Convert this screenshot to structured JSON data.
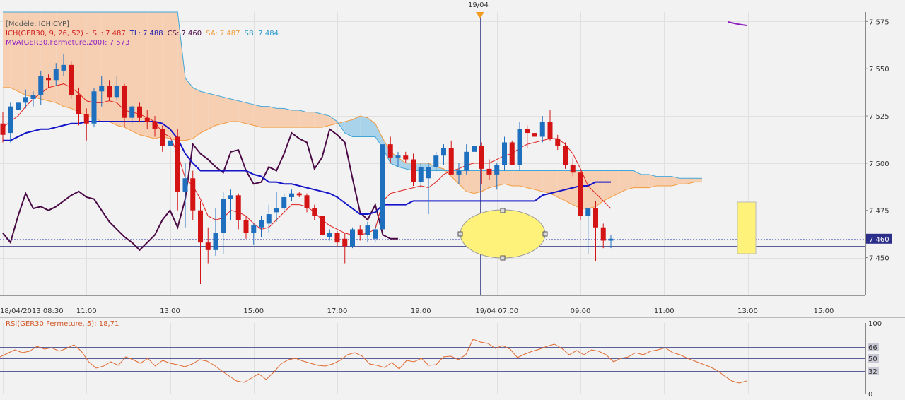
{
  "top_marker": {
    "label": "19/04"
  },
  "legend": {
    "model": "[Modèle: ICHICYP]",
    "ich_prefix": "ICH(GER30, 9, 26, 52) -",
    "sl": "SL: 7 487",
    "tl": "TL: 7 488",
    "cs": "CS: 7 460",
    "sa": "SA: 7 487",
    "sb": "SB: 7 484",
    "mva": "MVA(GER30.Fermeture,200): 7 573"
  },
  "rsi_label": "RSI(GER30.Fermeture, 5): 18,71",
  "colors": {
    "up_candle": "#1f6fbf",
    "down_candle": "#d41414",
    "tenkan": "#e02020",
    "kijun": "#1414c8",
    "chikou": "#4a0a45",
    "cloud_bear": "#f6cfb3",
    "cloud_bull": "#a9d3ea",
    "ssa_line": "#f39a3c",
    "ssb_line": "#41a7d8",
    "mva": "#8e1fbf",
    "rsi": "#e06a30",
    "highlight": "#fff27a",
    "price_tag": "#2c2f8a"
  },
  "chart_data": [
    {
      "type": "candlestick",
      "instrument": "GER30",
      "ylim": [
        7430,
        7580
      ],
      "y_ticks": [
        "7 575",
        "7 550",
        "7 525",
        "7 500",
        "7 475",
        "7 450"
      ],
      "y_tick_values": [
        7575,
        7550,
        7525,
        7500,
        7475,
        7450
      ],
      "x_ticks": [
        "18/04/2013 08:30",
        "11:00",
        "13:00",
        "15:00",
        "17:00",
        "19:00",
        "19/04 07:00",
        "09:00",
        "11:00",
        "13:00",
        "15:00"
      ],
      "last_price": {
        "label": "7 460",
        "value": 7460
      },
      "horizontal_lines": [
        7517,
        7456
      ],
      "dotted_line": 7460,
      "candles_ohlc": [
        [
          7521,
          7527,
          7511,
          7515
        ],
        [
          7516,
          7532,
          7511,
          7530
        ],
        [
          7528,
          7537,
          7524,
          7532
        ],
        [
          7532,
          7539,
          7529,
          7535
        ],
        [
          7534,
          7538,
          7530,
          7536
        ],
        [
          7536,
          7549,
          7531,
          7546
        ],
        [
          7545,
          7547,
          7540,
          7544
        ],
        [
          7544,
          7553,
          7541,
          7550
        ],
        [
          7549,
          7558,
          7546,
          7552
        ],
        [
          7552,
          7554,
          7534,
          7536
        ],
        [
          7536,
          7540,
          7520,
          7526
        ],
        [
          7526,
          7529,
          7512,
          7521
        ],
        [
          7521,
          7540,
          7519,
          7538
        ],
        [
          7538,
          7546,
          7530,
          7541
        ],
        [
          7541,
          7544,
          7533,
          7535
        ],
        [
          7535,
          7546,
          7533,
          7541
        ],
        [
          7541,
          7542,
          7519,
          7524
        ],
        [
          7524,
          7531,
          7521,
          7530
        ],
        [
          7530,
          7532,
          7522,
          7524
        ],
        [
          7524,
          7528,
          7518,
          7522
        ],
        [
          7522,
          7525,
          7514,
          7518
        ],
        [
          7518,
          7520,
          7506,
          7509
        ],
        [
          7509,
          7516,
          7505,
          7512
        ],
        [
          7514,
          7518,
          7475,
          7485
        ],
        [
          7485,
          7500,
          7466,
          7492
        ],
        [
          7492,
          7496,
          7470,
          7475
        ],
        [
          7475,
          7480,
          7436,
          7458
        ],
        [
          7458,
          7466,
          7447,
          7454
        ],
        [
          7454,
          7476,
          7451,
          7463
        ],
        [
          7463,
          7485,
          7452,
          7481
        ],
        [
          7481,
          7486,
          7470,
          7483
        ],
        [
          7483,
          7484,
          7465,
          7470
        ],
        [
          7470,
          7472,
          7460,
          7463
        ],
        [
          7463,
          7468,
          7457,
          7467
        ],
        [
          7466,
          7472,
          7461,
          7470
        ],
        [
          7468,
          7478,
          7463,
          7473
        ],
        [
          7474,
          7485,
          7469,
          7476
        ],
        [
          7476,
          7484,
          7475,
          7482
        ],
        [
          7482,
          7486,
          7480,
          7484
        ],
        [
          7484,
          7485,
          7482,
          7483
        ],
        [
          7483,
          7484,
          7474,
          7476
        ],
        [
          7476,
          7478,
          7470,
          7472
        ],
        [
          7472,
          7474,
          7460,
          7462
        ],
        [
          7461,
          7465,
          7459,
          7463
        ],
        [
          7463,
          7464,
          7456,
          7458
        ],
        [
          7460,
          7463,
          7447,
          7456
        ],
        [
          7456,
          7466,
          7455,
          7465
        ],
        [
          7465,
          7467,
          7459,
          7462
        ],
        [
          7462,
          7469,
          7458,
          7467
        ],
        [
          7460,
          7468,
          7458,
          7465
        ],
        [
          7465,
          7512,
          7462,
          7510
        ],
        [
          7510,
          7514,
          7500,
          7503
        ],
        [
          7503,
          7506,
          7498,
          7504
        ],
        [
          7504,
          7506,
          7500,
          7502
        ],
        [
          7502,
          7505,
          7488,
          7490
        ],
        [
          7490,
          7500,
          7487,
          7498
        ],
        [
          7492,
          7500,
          7473,
          7498
        ],
        [
          7498,
          7506,
          7496,
          7504
        ],
        [
          7504,
          7510,
          7499,
          7508
        ],
        [
          7508,
          7512,
          7496,
          7494
        ],
        [
          7494,
          7500,
          7489,
          7496
        ],
        [
          7496,
          7510,
          7494,
          7506
        ],
        [
          7506,
          7512,
          7502,
          7509
        ],
        [
          7509,
          7511,
          7489,
          7497
        ],
        [
          7497,
          7502,
          7491,
          7494
        ],
        [
          7494,
          7500,
          7486,
          7499
        ],
        [
          7499,
          7514,
          7496,
          7511
        ],
        [
          7511,
          7512,
          7499,
          7499
        ],
        [
          7499,
          7522,
          7496,
          7518
        ],
        [
          7518,
          7520,
          7508,
          7516
        ],
        [
          7516,
          7518,
          7510,
          7514
        ],
        [
          7514,
          7525,
          7511,
          7522
        ],
        [
          7522,
          7528,
          7512,
          7513
        ],
        [
          7513,
          7515,
          7507,
          7509
        ],
        [
          7509,
          7511,
          7497,
          7499
        ],
        [
          7499,
          7503,
          7493,
          7495
        ],
        [
          7495,
          7496,
          7470,
          7472
        ],
        [
          7472,
          7475,
          7452,
          7476
        ],
        [
          7476,
          7480,
          7448,
          7466
        ],
        [
          7466,
          7468,
          7455,
          7459
        ],
        [
          7459,
          7462,
          7455,
          7460
        ]
      ],
      "tenkan": [
        7519,
        7522,
        7525,
        7530,
        7534,
        7537,
        7540,
        7541,
        7542,
        7540,
        7537,
        7533,
        7532,
        7532,
        7533,
        7532,
        7528,
        7527,
        7526,
        7524,
        7522,
        7516,
        7514,
        7505,
        7492,
        7488,
        7481,
        7472,
        7470,
        7471,
        7475,
        7474,
        7472,
        7468,
        7465,
        7466,
        7470,
        7474,
        7478,
        7478,
        7477,
        7474,
        7470,
        7467,
        7465,
        7463,
        7462,
        7462,
        7463,
        7465,
        7480,
        7484,
        7485,
        7486,
        7487,
        7488,
        7487,
        7490,
        7494,
        7496,
        7497,
        7499,
        7500,
        7500,
        7500,
        7502,
        7504,
        7505,
        7508,
        7510,
        7511,
        7512,
        7513,
        7513,
        7510,
        7505,
        7497,
        7488,
        7484,
        7480,
        7476
      ],
      "kijun": [
        7512,
        7512,
        7514,
        7516,
        7517,
        7518,
        7518,
        7519,
        7520,
        7521,
        7521,
        7522,
        7522,
        7522,
        7522,
        7522,
        7522,
        7522,
        7522,
        7522,
        7522,
        7521,
        7518,
        7513,
        7505,
        7500,
        7496,
        7496,
        7496,
        7496,
        7496,
        7496,
        7496,
        7494,
        7493,
        7490,
        7490,
        7489,
        7489,
        7488,
        7487,
        7486,
        7485,
        7484,
        7482,
        7479,
        7476,
        7473,
        7473,
        7474,
        7478,
        7478,
        7478,
        7478,
        7480,
        7480,
        7480,
        7480,
        7480,
        7480,
        7480,
        7480,
        7480,
        7480,
        7480,
        7480,
        7480,
        7480,
        7480,
        7480,
        7480,
        7483,
        7484,
        7485,
        7486,
        7487,
        7488,
        7488,
        7490,
        7490,
        7490
      ],
      "chikou_start_index": 0,
      "chikou": [
        7463,
        7458,
        7472,
        7484,
        7476,
        7477,
        7475,
        7477,
        7480,
        7483,
        7485,
        7482,
        7481,
        7475,
        7469,
        7465,
        7461,
        7458,
        7454,
        7458,
        7462,
        7470,
        7475,
        7466,
        7481,
        7510,
        7505,
        7502,
        7498,
        7495,
        7506,
        7507,
        7496,
        7489,
        7490,
        7498,
        7496,
        7505,
        7516,
        7513,
        7511,
        7497,
        7503,
        7518,
        7515,
        7511,
        7492,
        7474,
        7470,
        7478,
        7462,
        7460,
        7460
      ],
      "senkou_a": [
        7540,
        7540,
        7538,
        7536,
        7535,
        7534,
        7533,
        7532,
        7530,
        7529,
        7527,
        7525,
        7524,
        7522,
        7522,
        7520,
        7519,
        7517,
        7515,
        7514,
        7513,
        7514,
        7513,
        7512,
        7512,
        7513,
        7516,
        7518,
        7520,
        7521,
        7522,
        7522,
        7521,
        7520,
        7519,
        7519,
        7519,
        7519,
        7519,
        7519,
        7519,
        7519,
        7519,
        7520,
        7521,
        7522,
        7523,
        7525,
        7524,
        7521,
        7513,
        7506,
        7503,
        7500,
        7500,
        7500,
        7500,
        7498,
        7497,
        7493,
        7489,
        7485,
        7484,
        7485,
        7487,
        7488,
        7489,
        7488,
        7488,
        7487,
        7486,
        7485,
        7484,
        7482,
        7480,
        7478,
        7476,
        7476,
        7477,
        7480,
        7482,
        7484,
        7486,
        7487,
        7487,
        7487,
        7488,
        7488,
        7488,
        7489,
        7489,
        7490,
        7490
      ],
      "senkou_b": [
        7580,
        7580,
        7580,
        7580,
        7580,
        7580,
        7580,
        7580,
        7580,
        7580,
        7580,
        7580,
        7580,
        7580,
        7580,
        7580,
        7580,
        7580,
        7580,
        7580,
        7580,
        7580,
        7580,
        7580,
        7545,
        7540,
        7538,
        7537,
        7536,
        7535,
        7534,
        7533,
        7532,
        7531,
        7530,
        7530,
        7529,
        7529,
        7528,
        7528,
        7527,
        7527,
        7526,
        7525,
        7522,
        7516,
        7514,
        7514,
        7514,
        7514,
        7508,
        7500,
        7498,
        7497,
        7496,
        7496,
        7496,
        7496,
        7496,
        7496,
        7496,
        7496,
        7496,
        7496,
        7496,
        7496,
        7496,
        7496,
        7496,
        7496,
        7496,
        7496,
        7496,
        7496,
        7496,
        7496,
        7496,
        7496,
        7496,
        7496,
        7496,
        7496,
        7496,
        7496,
        7494,
        7494,
        7493,
        7493,
        7493,
        7492,
        7492,
        7492,
        7492
      ],
      "mva_points": [
        [
          7576,
          7575
        ],
        [
          7578,
          7574
        ],
        [
          7580,
          7573
        ]
      ]
    },
    {
      "type": "line",
      "name": "RSI",
      "ylim": [
        0,
        100
      ],
      "y_ticks": [
        "100",
        "66",
        "50",
        "32",
        "0"
      ],
      "y_tick_values": [
        100,
        66,
        50,
        32,
        0
      ],
      "levels": [
        66,
        50,
        32
      ],
      "values": [
        52,
        57,
        62,
        58,
        60,
        67,
        63,
        65,
        60,
        64,
        69,
        60,
        45,
        36,
        39,
        45,
        40,
        52,
        48,
        43,
        50,
        39,
        47,
        43,
        41,
        38,
        42,
        48,
        46,
        40,
        32,
        25,
        18,
        16,
        22,
        28,
        20,
        30,
        42,
        48,
        50,
        46,
        43,
        40,
        39,
        42,
        47,
        55,
        58,
        53,
        42,
        40,
        37,
        44,
        35,
        47,
        45,
        50,
        40,
        41,
        52,
        53,
        48,
        55,
        77,
        73,
        71,
        64,
        68,
        63,
        51,
        56,
        60,
        63,
        67,
        70,
        64,
        55,
        61,
        55,
        62,
        60,
        55,
        45,
        50,
        52,
        58,
        55,
        60,
        62,
        65,
        58,
        55,
        50,
        46,
        42,
        38,
        33,
        25,
        18,
        15,
        18
      ]
    }
  ]
}
